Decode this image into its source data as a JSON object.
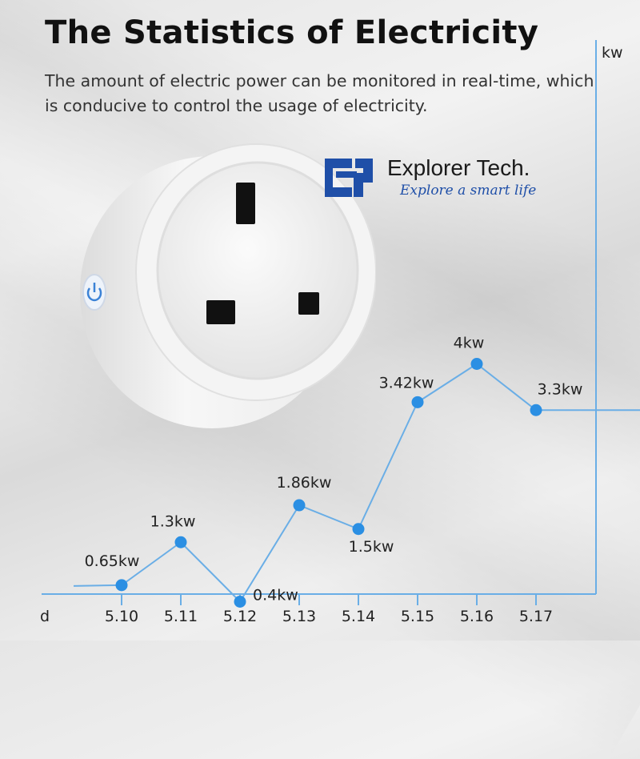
{
  "header": {
    "title": "The Statistics of Electricity",
    "subtitle": "The amount of electric power can be monitored in real-time, which is conducive to control the usage of electricity."
  },
  "brand": {
    "name": "Explorer Tech.",
    "tagline": "Explore a smart life",
    "color": "#1f4fa8"
  },
  "product": {
    "icon": "power-icon",
    "accent": "#3b82d6"
  },
  "chart_data": {
    "type": "line",
    "xlabel": "d",
    "ylabel": "kw",
    "categories": [
      "5.10",
      "5.11",
      "5.12",
      "5.13",
      "5.14",
      "5.15",
      "5.16",
      "5.17"
    ],
    "values": [
      0.65,
      1.3,
      0.4,
      1.86,
      1.5,
      3.42,
      4,
      3.3
    ],
    "labels": [
      "0.65kw",
      "1.3kw",
      "0.4kw",
      "1.86kw",
      "1.5kw",
      "3.42kw",
      "4kw",
      "3.3kw"
    ],
    "line_color": "#6aaee6",
    "point_color": "#2b8fe3",
    "axis_color": "#6aaee6",
    "grid": false
  }
}
